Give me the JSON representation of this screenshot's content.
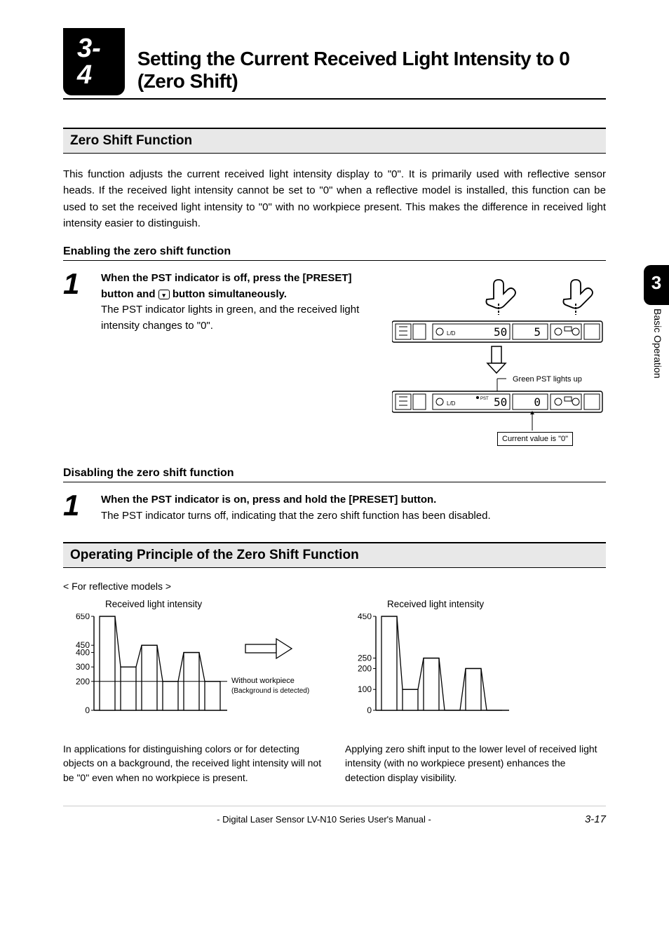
{
  "header": {
    "section_number": "3-4",
    "section_title": "Setting the Current Received Light Intensity to 0 (Zero Shift)"
  },
  "chapter_tab": {
    "number": "3",
    "label": "Basic Operation"
  },
  "sections": {
    "zero_shift_function": {
      "heading": "Zero Shift Function",
      "body": "This function adjusts the current received light intensity display to \"0\". It is primarily used with reflective sensor heads. If the received light intensity cannot be set to \"0\" when a reflective model is installed, this function can be used to set the received light intensity to \"0\" with no workpiece present. This makes the difference in received light intensity easier to distinguish."
    },
    "enabling": {
      "heading": "Enabling the zero shift function",
      "step_num": "1",
      "step_bold_1": "When the PST indicator is off, press the [PRESET] button and ",
      "step_bold_2": " button simultaneously.",
      "step_body": "The PST indicator lights in green, and the received light intensity changes to \"0\".",
      "diagram": {
        "display1": "50",
        "display1_right": "5",
        "display2": "50",
        "display2_right": "0",
        "callout1": "Green PST lights up",
        "callout2": "Current value is \"0\""
      }
    },
    "disabling": {
      "heading": "Disabling the zero shift function",
      "step_num": "1",
      "step_bold": "When the PST indicator is on, press and hold the [PRESET] button.",
      "step_body": "The PST indicator turns off, indicating that the zero shift function has been disabled."
    },
    "operating_principle": {
      "heading": "Operating Principle of the Zero Shift Function",
      "subtitle": "< For reflective models >",
      "chart1": {
        "title": "Received light intensity",
        "y_ticks": [
          "650",
          "450",
          "400",
          "300",
          "200",
          "0"
        ],
        "y_vals": [
          650,
          450,
          400,
          300,
          200,
          0
        ],
        "bars": [
          650,
          300,
          450,
          200,
          400,
          200
        ],
        "baseline": 200,
        "note1": "Without workpiece",
        "note2": "(Background is detected)",
        "caption": "In applications for distinguishing colors or for detecting objects on a background, the received light intensity will not be \"0\" even when no workpiece is present."
      },
      "chart2": {
        "title": "Received light intensity",
        "y_ticks": [
          "450",
          "250",
          "200",
          "100",
          "0"
        ],
        "y_vals": [
          450,
          250,
          200,
          100,
          0
        ],
        "bars": [
          450,
          100,
          250,
          0,
          200,
          0
        ],
        "caption": "Applying zero shift input to the lower level of received light intensity (with no workpiece present) enhances the detection display visibility."
      }
    }
  },
  "footer": {
    "center": "- Digital Laser Sensor LV-N10 Series User's Manual -",
    "right": "3-17"
  },
  "colors": {
    "page_bg": "#ffffff",
    "ink": "#000000",
    "h2_bg": "#e8e8e8",
    "bar_fill": "#ffffff",
    "bar_stroke": "#000000"
  }
}
